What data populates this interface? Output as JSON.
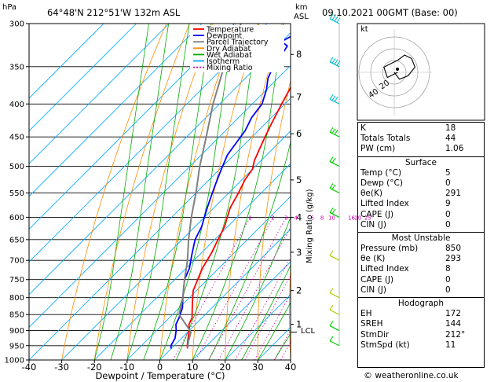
{
  "header": {
    "left_unit": "hPa",
    "location": "64°48'N  212°51'W  132m  ASL",
    "km_label": "km",
    "asl_label": "ASL",
    "datetime": "09.10.2021  00GMT  (Base: 00)"
  },
  "legend": [
    {
      "name": "Temperature",
      "color": "#ff0000"
    },
    {
      "name": "Dewpoint",
      "color": "#0000ff"
    },
    {
      "name": "Parcel Trajectory",
      "color": "#808080"
    },
    {
      "name": "Dry Adiabat",
      "color": "#ff8c00"
    },
    {
      "name": "Wet Adiabat",
      "color": "#00aa00"
    },
    {
      "name": "Isotherm",
      "color": "#00aaff"
    },
    {
      "name": "Mixing Ratio",
      "color": "#cc00aa"
    }
  ],
  "axis": {
    "xlabel": "Dewpoint / Temperature (°C)",
    "right_label": "Mixing Ratio (g/kg)",
    "lcl_label": "LCL"
  },
  "chart_data": {
    "type": "line",
    "title": "",
    "xlabel": "Dewpoint / Temperature (°C)",
    "ylabel": "hPa",
    "xlim": [
      -40,
      40
    ],
    "ylim": [
      1000,
      300
    ],
    "x_ticks": [
      -40,
      -30,
      -20,
      -10,
      0,
      10,
      20,
      30,
      40
    ],
    "pressure_ticks": [
      300,
      350,
      400,
      450,
      500,
      550,
      600,
      650,
      700,
      750,
      800,
      850,
      900,
      950,
      1000
    ],
    "km_ticks": [
      {
        "label": "8",
        "p": 335
      },
      {
        "label": "7",
        "p": 390
      },
      {
        "label": "6",
        "p": 445
      },
      {
        "label": "5",
        "p": 525
      },
      {
        "label": "4",
        "p": 600
      },
      {
        "label": "3",
        "p": 680
      },
      {
        "label": "2",
        "p": 780
      },
      {
        "label": "1",
        "p": 880
      }
    ],
    "mixing_ratio_labels": [
      "1",
      "2",
      "3",
      "4",
      "6",
      "8",
      "10",
      "16",
      "20",
      "25"
    ],
    "lcl_pressure": 905,
    "series": [
      {
        "name": "Temperature",
        "color": "#ff0000",
        "points": [
          [
            5,
            960
          ],
          [
            4,
            950
          ],
          [
            2,
            925
          ],
          [
            0,
            900
          ],
          [
            -2,
            880
          ],
          [
            -3,
            860
          ],
          [
            -5,
            840
          ],
          [
            -7,
            820
          ],
          [
            -9,
            800
          ],
          [
            -11,
            780
          ],
          [
            -13,
            750
          ],
          [
            -15,
            720
          ],
          [
            -16,
            700
          ],
          [
            -17,
            680
          ],
          [
            -19,
            650
          ],
          [
            -21,
            620
          ],
          [
            -23,
            600
          ],
          [
            -25,
            580
          ],
          [
            -27,
            550
          ],
          [
            -29,
            525
          ],
          [
            -30,
            505
          ],
          [
            -32,
            490
          ],
          [
            -34,
            470
          ],
          [
            -36,
            450
          ],
          [
            -38,
            430
          ],
          [
            -41,
            400
          ],
          [
            -44,
            370
          ],
          [
            -46,
            350
          ],
          [
            -48,
            330
          ],
          [
            -51,
            310
          ],
          [
            -54,
            300
          ]
        ]
      },
      {
        "name": "Dewpoint",
        "color": "#0000ff",
        "points": [
          [
            0,
            960
          ],
          [
            -1,
            950
          ],
          [
            -2,
            925
          ],
          [
            -4,
            900
          ],
          [
            -6,
            880
          ],
          [
            -7,
            860
          ],
          [
            -8,
            845
          ],
          [
            -9,
            830
          ],
          [
            -11,
            810
          ],
          [
            -13,
            790
          ],
          [
            -15,
            770
          ],
          [
            -17,
            750
          ],
          [
            -19,
            720
          ],
          [
            -21,
            700
          ],
          [
            -23,
            680
          ],
          [
            -26,
            650
          ],
          [
            -28,
            620
          ],
          [
            -30,
            600
          ],
          [
            -32,
            580
          ],
          [
            -34,
            560
          ],
          [
            -36,
            540
          ],
          [
            -38,
            520
          ],
          [
            -40,
            500
          ],
          [
            -42,
            480
          ],
          [
            -43,
            460
          ],
          [
            -44,
            440
          ],
          [
            -46,
            420
          ],
          [
            -47,
            400
          ],
          [
            -50,
            380
          ],
          [
            -53,
            365
          ],
          [
            -55,
            350
          ],
          [
            -56,
            335
          ],
          [
            -57,
            325
          ],
          [
            -60,
            320
          ],
          [
            -58,
            310
          ],
          [
            -62,
            300
          ]
        ]
      },
      {
        "name": "Parcel Trajectory",
        "color": "#808080",
        "points": [
          [
            5,
            960
          ],
          [
            3,
            935
          ],
          [
            1,
            905
          ],
          [
            -3,
            880
          ],
          [
            -8,
            850
          ],
          [
            -12,
            800
          ],
          [
            -17,
            750
          ],
          [
            -22,
            700
          ],
          [
            -28,
            650
          ],
          [
            -34,
            600
          ],
          [
            -40,
            550
          ],
          [
            -47,
            500
          ],
          [
            -54,
            450
          ],
          [
            -62,
            400
          ],
          [
            -70,
            350
          ],
          [
            -78,
            300
          ]
        ]
      }
    ],
    "wind_profile": [
      {
        "p": 300,
        "speed_kt": 40
      },
      {
        "p": 350,
        "speed_kt": 35
      },
      {
        "p": 400,
        "speed_kt": 30
      },
      {
        "p": 450,
        "speed_kt": 25
      },
      {
        "p": 500,
        "speed_kt": 20
      },
      {
        "p": 550,
        "speed_kt": 15
      },
      {
        "p": 600,
        "speed_kt": 15
      },
      {
        "p": 700,
        "speed_kt": 10
      },
      {
        "p": 800,
        "speed_kt": 10
      },
      {
        "p": 850,
        "speed_kt": 10
      },
      {
        "p": 900,
        "speed_kt": 10
      },
      {
        "p": 950,
        "speed_kt": 5
      }
    ]
  },
  "hodograph": {
    "unit_label": "kt",
    "ring_labels": [
      "20",
      "40"
    ],
    "points": [
      [
        0,
        0
      ],
      [
        3,
        -4
      ],
      [
        8,
        -2
      ],
      [
        12,
        3
      ],
      [
        10,
        8
      ],
      [
        6,
        10
      ],
      [
        2,
        7
      ],
      [
        -2,
        5
      ],
      [
        -6,
        3
      ],
      [
        -4,
        -3
      ],
      [
        2,
        0
      ]
    ]
  },
  "indices": {
    "top": [
      {
        "label": "K",
        "value": "18"
      },
      {
        "label": "Totals Totals",
        "value": "44"
      },
      {
        "label": "PW (cm)",
        "value": "1.06"
      }
    ],
    "surface_title": "Surface",
    "surface": [
      {
        "label": "Temp (°C)",
        "value": "5"
      },
      {
        "label": "Dewp (°C)",
        "value": "0"
      },
      {
        "label": "θe(K)",
        "value": "291"
      },
      {
        "label": "Lifted Index",
        "value": "9"
      },
      {
        "label": "CAPE (J)",
        "value": "0"
      },
      {
        "label": "CIN (J)",
        "value": "0"
      }
    ],
    "unstable_title": "Most Unstable",
    "unstable": [
      {
        "label": "Pressure (mb)",
        "value": "850"
      },
      {
        "label": "θe (K)",
        "value": "293"
      },
      {
        "label": "Lifted Index",
        "value": "8"
      },
      {
        "label": "CAPE (J)",
        "value": "0"
      },
      {
        "label": "CIN (J)",
        "value": "0"
      }
    ],
    "hodo_title": "Hodograph",
    "hodo": [
      {
        "label": "EH",
        "value": "172"
      },
      {
        "label": "SREH",
        "value": "144"
      },
      {
        "label": "StmDir",
        "value": "212°"
      },
      {
        "label": "StmSpd (kt)",
        "value": "11"
      }
    ]
  },
  "footer": {
    "copyright": "©",
    "site": "weatheronline.co.uk"
  }
}
